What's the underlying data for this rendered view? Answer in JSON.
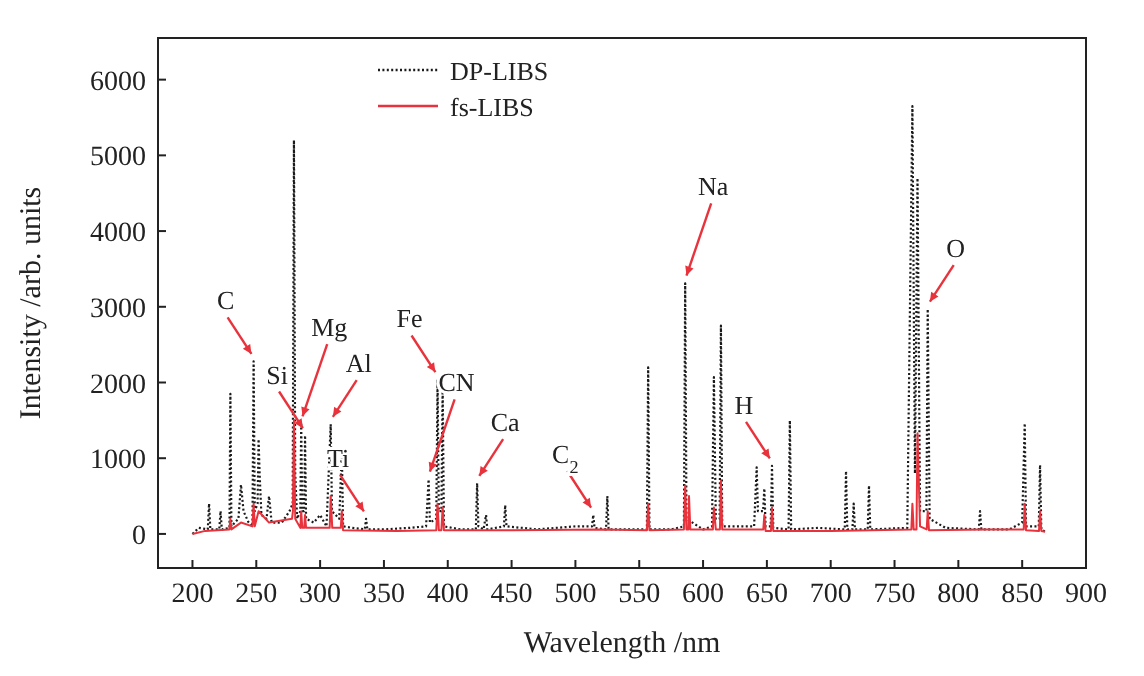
{
  "chart_data": {
    "type": "line",
    "xlabel": "Wavelength /nm",
    "ylabel": "Intensity /arb. units",
    "xlim": [
      173,
      900
    ],
    "ylim": [
      -450,
      6550
    ],
    "xticks": [
      200,
      250,
      300,
      350,
      400,
      450,
      500,
      550,
      600,
      650,
      700,
      750,
      800,
      850,
      900
    ],
    "yticks": [
      0,
      1000,
      2000,
      3000,
      4000,
      5000,
      6000
    ],
    "legend": "top left",
    "grid": false,
    "marker": "none",
    "series": [
      {
        "name": "DP-LIBS",
        "color": "#1a1a1a",
        "line_style": "dotted",
        "x": [
          200,
          205,
          212,
          213,
          214,
          221,
          222,
          223,
          229,
          229.7,
          230.5,
          236,
          238,
          240,
          244,
          247,
          247.9,
          248.8,
          251,
          251.8,
          252.6,
          254,
          258,
          260,
          262,
          270,
          276,
          278.5,
          279.5,
          280.5,
          282,
          284.5,
          285.2,
          286,
          287.5,
          288.2,
          289,
          295,
          300,
          305,
          308.3,
          309.3,
          315,
          317,
          318,
          325,
          335,
          336,
          337,
          350,
          370,
          383,
          385,
          386,
          391,
          392,
          393,
          395,
          396,
          397,
          410,
          422,
          423,
          424,
          428,
          430,
          431,
          444,
          445,
          446,
          470,
          500,
          513,
          514,
          515,
          524,
          525,
          526,
          535,
          556,
          557,
          558,
          575,
          585,
          586,
          587,
          600,
          607,
          608.5,
          610,
          613,
          614,
          615,
          640,
          642,
          643,
          647,
          648,
          649,
          653,
          654,
          655,
          667,
          668,
          669,
          690,
          711,
          712,
          713,
          717,
          718,
          719,
          729,
          730,
          731,
          760,
          764,
          766,
          768,
          770,
          775,
          776,
          777.5,
          790,
          816,
          817,
          818,
          840,
          850,
          852,
          853,
          863,
          864,
          865,
          868
        ],
        "values": [
          0,
          80,
          60,
          400,
          60,
          60,
          300,
          60,
          80,
          1850,
          100,
          200,
          650,
          300,
          150,
          100,
          2280,
          300,
          400,
          1250,
          800,
          250,
          200,
          500,
          150,
          150,
          300,
          400,
          5200,
          800,
          200,
          300,
          1450,
          300,
          300,
          1300,
          200,
          150,
          250,
          100,
          1450,
          300,
          200,
          1100,
          100,
          80,
          60,
          200,
          60,
          60,
          80,
          100,
          720,
          150,
          200,
          2040,
          300,
          300,
          1950,
          100,
          60,
          60,
          670,
          100,
          60,
          250,
          60,
          100,
          380,
          100,
          60,
          100,
          100,
          250,
          80,
          60,
          500,
          60,
          60,
          60,
          2200,
          60,
          60,
          100,
          3310,
          200,
          60,
          100,
          2070,
          200,
          200,
          2750,
          100,
          100,
          880,
          300,
          300,
          600,
          100,
          100,
          900,
          80,
          60,
          1500,
          60,
          80,
          60,
          830,
          60,
          60,
          400,
          60,
          60,
          640,
          60,
          80,
          5650,
          800,
          4700,
          300,
          300,
          2970,
          200,
          80,
          60,
          300,
          60,
          60,
          150,
          1460,
          100,
          100,
          910,
          60,
          30
        ]
      },
      {
        "name": "fs-LIBS",
        "color": "#e8323c",
        "line_style": "solid",
        "x": [
          200,
          210,
          228.9,
          229.7,
          230.5,
          238,
          247,
          247.9,
          248.8,
          251.8,
          260,
          278,
          278.7,
          279.5,
          280.5,
          284.5,
          285.2,
          286,
          287.5,
          288.2,
          289,
          300,
          307.5,
          308.3,
          309.5,
          316.2,
          317,
          318,
          360,
          391,
          392,
          393,
          395,
          396,
          397,
          450,
          520,
          556,
          557,
          558,
          585,
          586,
          587,
          588.5,
          589,
          590,
          607.7,
          608.5,
          610,
          613.2,
          614,
          615,
          640,
          647.2,
          648,
          649,
          653.2,
          654,
          655,
          700,
          763.2,
          764,
          765,
          767.2,
          768,
          770,
          775.2,
          776,
          777,
          820,
          851.2,
          852,
          853,
          863.2,
          864,
          865,
          868
        ],
        "values": [
          0,
          40,
          60,
          200,
          60,
          150,
          100,
          400,
          100,
          300,
          150,
          200,
          300,
          1500,
          200,
          80,
          300,
          80,
          80,
          250,
          80,
          80,
          80,
          500,
          80,
          80,
          300,
          50,
          40,
          50,
          400,
          50,
          50,
          350,
          50,
          50,
          60,
          50,
          400,
          50,
          60,
          640,
          60,
          60,
          500,
          60,
          60,
          350,
          60,
          60,
          700,
          60,
          60,
          60,
          250,
          40,
          40,
          350,
          40,
          40,
          60,
          400,
          60,
          60,
          1330,
          100,
          60,
          300,
          50,
          60,
          60,
          400,
          50,
          40,
          300,
          40,
          30
        ]
      }
    ],
    "annotations": [
      {
        "text": "C",
        "x": 247.9,
        "y": 2280
      },
      {
        "text": "Mg",
        "x": 285.2,
        "y": 1450
      },
      {
        "text": "Si",
        "x": 288.2,
        "y": 1300
      },
      {
        "text": "Al",
        "x": 308.3,
        "y": 1450
      },
      {
        "text": "Ti",
        "x": 336,
        "y": 200
      },
      {
        "text": "CN",
        "x": 385,
        "y": 720
      },
      {
        "text": "Fe",
        "x": 392,
        "y": 2040
      },
      {
        "text": "Ca",
        "x": 423,
        "y": 670
      },
      {
        "text": "C$_{2}$",
        "x": 514,
        "y": 250
      },
      {
        "text": "Na",
        "x": 586,
        "y": 3310
      },
      {
        "text": "H",
        "x": 654,
        "y": 900
      },
      {
        "text": "O",
        "x": 776,
        "y": 2970
      }
    ]
  }
}
